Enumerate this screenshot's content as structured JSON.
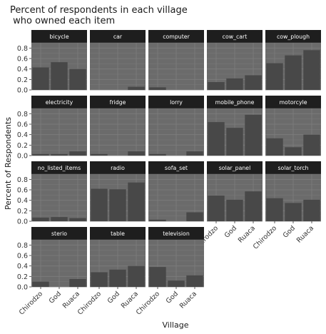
{
  "chart_data": {
    "type": "bar",
    "title_lines": [
      "Percent of respondents in each village",
      " who owned each item"
    ],
    "xlabel": "Village",
    "ylabel": "Percent of Respondents",
    "categories": [
      "Chirodzo",
      "God",
      "Ruaca"
    ],
    "ylim": [
      0,
      0.9
    ],
    "yticks": [
      "0.0",
      "0.2",
      "0.4",
      "0.6",
      "0.8"
    ],
    "ytick_values": [
      0,
      0.2,
      0.4,
      0.6,
      0.8
    ],
    "grid": true,
    "colors": {
      "panel": "#6b6b6b",
      "grid": "#7d7d7d",
      "bar": "#484848",
      "strip": "#1e1e1e",
      "strip_text": "#ffffff"
    },
    "panels": [
      {
        "name": "bicycle",
        "values": [
          0.43,
          0.53,
          0.4
        ]
      },
      {
        "name": "car",
        "values": [
          0.0,
          0.0,
          0.06
        ]
      },
      {
        "name": "computer",
        "values": [
          0.05,
          0.0,
          0.0
        ]
      },
      {
        "name": "cow_cart",
        "values": [
          0.15,
          0.22,
          0.28
        ]
      },
      {
        "name": "cow_plough",
        "values": [
          0.51,
          0.66,
          0.76
        ]
      },
      {
        "name": "electricity",
        "values": [
          0.03,
          0.03,
          0.08
        ]
      },
      {
        "name": "fridge",
        "values": [
          0.03,
          0.0,
          0.08
        ]
      },
      {
        "name": "lorry",
        "values": [
          0.03,
          0.0,
          0.08
        ]
      },
      {
        "name": "mobile_phone",
        "values": [
          0.64,
          0.53,
          0.78
        ]
      },
      {
        "name": "motorcyle",
        "values": [
          0.33,
          0.16,
          0.4
        ]
      },
      {
        "name": "no_listed_items",
        "values": [
          0.07,
          0.08,
          0.06
        ]
      },
      {
        "name": "radio",
        "values": [
          0.62,
          0.61,
          0.74
        ]
      },
      {
        "name": "sofa_set",
        "values": [
          0.03,
          0.0,
          0.17
        ]
      },
      {
        "name": "solar_panel",
        "values": [
          0.49,
          0.41,
          0.57
        ]
      },
      {
        "name": "solar_torch",
        "values": [
          0.44,
          0.35,
          0.41
        ]
      },
      {
        "name": "sterio",
        "values": [
          0.1,
          0.0,
          0.15
        ]
      },
      {
        "name": "table",
        "values": [
          0.28,
          0.33,
          0.4
        ]
      },
      {
        "name": "television",
        "values": [
          0.38,
          0.12,
          0.22
        ]
      }
    ]
  }
}
